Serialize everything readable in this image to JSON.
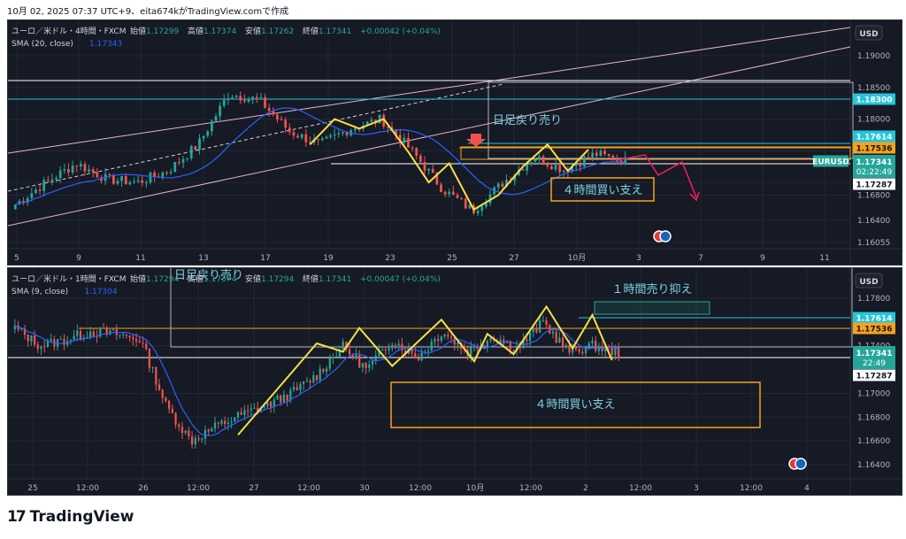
{
  "header": {
    "text": "10月 02, 2025 07:37 UTC+9、eita674kがTradingView.comで作成"
  },
  "brand": {
    "mark": "17",
    "name": "TradingView"
  },
  "colors": {
    "bg": "#161a25",
    "grid": "#232734",
    "up": "#26a69a",
    "down": "#ef5350",
    "sma": "#2962ff",
    "yellow": "#f5e146",
    "cyan": "#26c6da",
    "orange": "#f7a21b",
    "box": "#b2b5be",
    "pink": "#e8b4c8",
    "magenta": "#e91e63",
    "text": "#b2b5be"
  },
  "chart_data": [
    {
      "type": "candlestick",
      "symbol": "ユーロ／米ドル・4時間・FXCM",
      "ohlc_labels": {
        "open_label": "始値",
        "open": "1.17299",
        "high_label": "高値",
        "high": "1.17374",
        "low_label": "安値",
        "low": "1.17262",
        "close_label": "終値",
        "close": "1.17341",
        "change": "+0.00042 (+0.04%)"
      },
      "indicator": {
        "label": "SMA (20, close)",
        "value": "1.17343"
      },
      "currency": "USD",
      "y_ticks": [
        "1.19000",
        "1.18500",
        "1.18000",
        "1.17500",
        "1.17000",
        "1.16800",
        "1.16400",
        "1.16055"
      ],
      "x_ticks": [
        "5",
        "9",
        "11",
        "13",
        "17",
        "19",
        "23",
        "25",
        "27",
        "10月",
        "3",
        "7",
        "9",
        "11"
      ],
      "price_labels": [
        {
          "text": "1.18300",
          "kind": "cyan"
        },
        {
          "text": "1.17614",
          "kind": "cyan"
        },
        {
          "text": "1.17536",
          "kind": "orange"
        },
        {
          "text": "EURUSD",
          "kind": "tag"
        },
        {
          "text": "1.17341",
          "kind": "current"
        },
        {
          "text": "02:22:49",
          "kind": "current"
        },
        {
          "text": "1.17287",
          "kind": "white"
        }
      ],
      "annotations": [
        "日足戻り売り",
        "４時間買い支え"
      ],
      "last_close": 1.17341
    },
    {
      "type": "candlestick",
      "symbol": "ユーロ／米ドル・1時間・FXCM",
      "ohlc_labels": {
        "open_label": "始値",
        "open": "1.17294",
        "high_label": "高値",
        "high": "1.17374",
        "low_label": "安値",
        "low": "1.17294",
        "close_label": "終値",
        "close": "1.17341",
        "change": "+0.00047 (+0.04%)"
      },
      "indicator": {
        "label": "SMA (9, close)",
        "value": "1.17304"
      },
      "currency": "USD",
      "y_ticks": [
        "1.17800",
        "1.17400",
        "1.17000",
        "1.16800",
        "1.16600",
        "1.16400"
      ],
      "x_ticks": [
        "25",
        "12:00",
        "26",
        "12:00",
        "27",
        "12:00",
        "30",
        "12:00",
        "10月",
        "12:00",
        "2",
        "12:00",
        "3",
        "12:00",
        "4"
      ],
      "price_labels": [
        {
          "text": "1.17614",
          "kind": "cyan"
        },
        {
          "text": "1.17536",
          "kind": "orange"
        },
        {
          "text": "1.17341",
          "kind": "current"
        },
        {
          "text": "22:49",
          "kind": "current"
        },
        {
          "text": "1.17287",
          "kind": "white"
        }
      ],
      "annotations": [
        "１時間売り抑え",
        "４時間買い支え",
        "日足戻り売り"
      ],
      "last_close": 1.17341
    }
  ]
}
